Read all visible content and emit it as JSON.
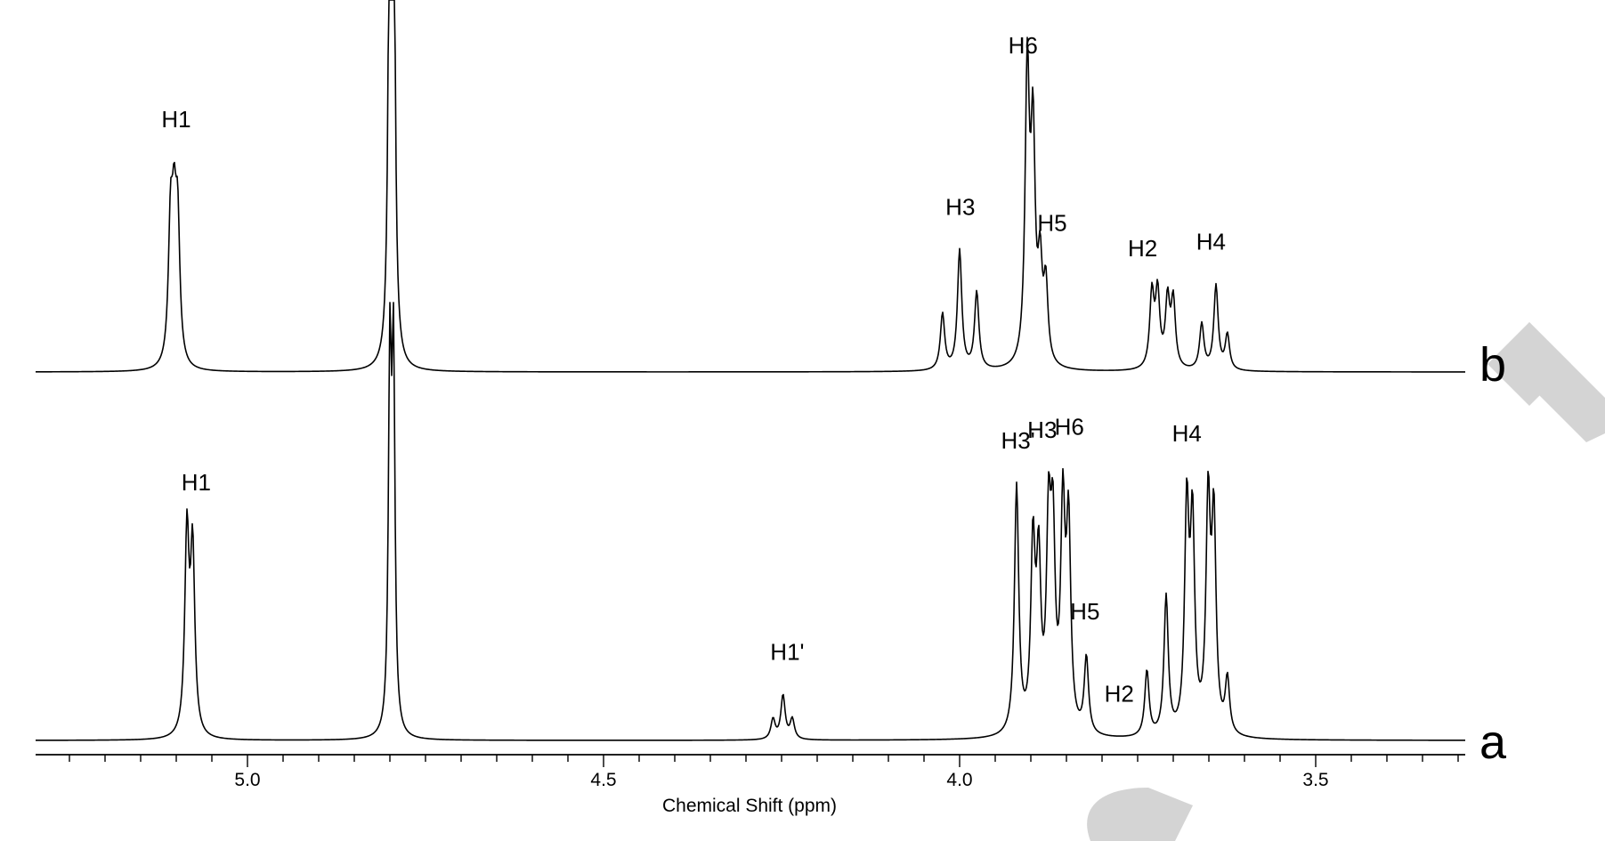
{
  "chart_data": {
    "type": "line",
    "title": "",
    "xlabel": "Chemical Shift (ppm)",
    "ylabel": "",
    "xlim": [
      5.25,
      3.26
    ],
    "x_reversed": true,
    "grid": false,
    "x_ticks": [
      "5.0",
      "4.5",
      "4.0",
      "3.5"
    ],
    "x_tick_values": [
      5.0,
      4.5,
      4.0,
      3.5
    ],
    "series": [
      {
        "name": "b",
        "peaks": [
          {
            "x": 5.108,
            "y": 0.38
          },
          {
            "x": 5.103,
            "y": 0.34
          },
          {
            "x": 5.098,
            "y": 0.38
          },
          {
            "x": 4.8,
            "y": 1.5
          },
          {
            "x": 4.795,
            "y": 1.5
          },
          {
            "x": 4.024,
            "y": 0.16
          },
          {
            "x": 4.0,
            "y": 0.34
          },
          {
            "x": 3.976,
            "y": 0.22
          },
          {
            "x": 3.905,
            "y": 0.83
          },
          {
            "x": 3.897,
            "y": 0.63
          },
          {
            "x": 3.887,
            "y": 0.26
          },
          {
            "x": 3.879,
            "y": 0.22
          },
          {
            "x": 3.73,
            "y": 0.21
          },
          {
            "x": 3.722,
            "y": 0.21
          },
          {
            "x": 3.708,
            "y": 0.19
          },
          {
            "x": 3.7,
            "y": 0.19
          },
          {
            "x": 3.66,
            "y": 0.13
          },
          {
            "x": 3.64,
            "y": 0.24
          },
          {
            "x": 3.624,
            "y": 0.1
          }
        ],
        "annotations": [
          {
            "label": "H1",
            "x": 5.1
          },
          {
            "label": "H3",
            "x": 3.999
          },
          {
            "label": "H6",
            "x": 3.911
          },
          {
            "label": "H5",
            "x": 3.87
          },
          {
            "label": "H2",
            "x": 3.743
          },
          {
            "label": "H4",
            "x": 3.647
          }
        ]
      },
      {
        "name": "a",
        "peaks": [
          {
            "x": 5.085,
            "y": 0.55
          },
          {
            "x": 5.077,
            "y": 0.5
          },
          {
            "x": 4.8,
            "y": 1.0
          },
          {
            "x": 4.795,
            "y": 1.0
          },
          {
            "x": 4.262,
            "y": 0.055
          },
          {
            "x": 4.248,
            "y": 0.12
          },
          {
            "x": 4.235,
            "y": 0.055
          },
          {
            "x": 3.92,
            "y": 0.68
          },
          {
            "x": 3.897,
            "y": 0.5
          },
          {
            "x": 3.889,
            "y": 0.44
          },
          {
            "x": 3.875,
            "y": 0.53
          },
          {
            "x": 3.869,
            "y": 0.5
          },
          {
            "x": 3.855,
            "y": 0.59
          },
          {
            "x": 3.847,
            "y": 0.55
          },
          {
            "x": 3.822,
            "y": 0.21
          },
          {
            "x": 3.737,
            "y": 0.18
          },
          {
            "x": 3.71,
            "y": 0.38
          },
          {
            "x": 3.681,
            "y": 0.61
          },
          {
            "x": 3.673,
            "y": 0.56
          },
          {
            "x": 3.651,
            "y": 0.62
          },
          {
            "x": 3.643,
            "y": 0.57
          },
          {
            "x": 3.624,
            "y": 0.15
          }
        ],
        "annotations": [
          {
            "label": "H1",
            "x": 5.072
          },
          {
            "label": "H1'",
            "x": 4.242
          },
          {
            "label": "H3'",
            "x": 3.918
          },
          {
            "label": "H3",
            "x": 3.884
          },
          {
            "label": "H6",
            "x": 3.846
          },
          {
            "label": "H5",
            "x": 3.824
          },
          {
            "label": "H2",
            "x": 3.776
          },
          {
            "label": "H4",
            "x": 3.681
          }
        ]
      }
    ]
  }
}
